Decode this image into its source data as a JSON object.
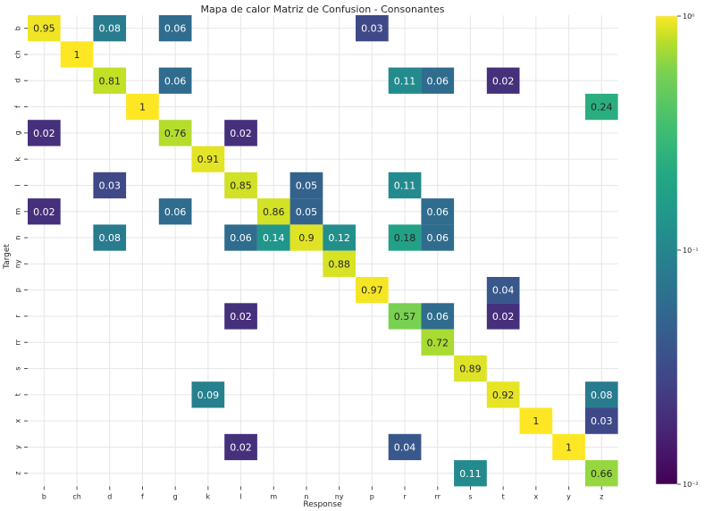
{
  "chart_data": {
    "type": "heatmap",
    "title": "Mapa de calor Matriz de Confusion - Consonantes",
    "xlabel": "Response",
    "ylabel": "Target",
    "x_categories": [
      "b",
      "ch",
      "d",
      "f",
      "g",
      "k",
      "l",
      "m",
      "n",
      "ny",
      "p",
      "r",
      "rr",
      "s",
      "t",
      "x",
      "y",
      "z"
    ],
    "y_categories": [
      "b",
      "ch",
      "d",
      "f",
      "g",
      "k",
      "l",
      "m",
      "n",
      "ny",
      "p",
      "r",
      "rr",
      "s",
      "t",
      "x",
      "y",
      "z"
    ],
    "cells": [
      {
        "row": "b",
        "col": "b",
        "value": 0.95,
        "label": "0.95"
      },
      {
        "row": "b",
        "col": "d",
        "value": 0.08,
        "label": "0.08"
      },
      {
        "row": "b",
        "col": "g",
        "value": 0.06,
        "label": "0.06"
      },
      {
        "row": "b",
        "col": "p",
        "value": 0.03,
        "label": "0.03"
      },
      {
        "row": "ch",
        "col": "ch",
        "value": 1,
        "label": "1"
      },
      {
        "row": "d",
        "col": "d",
        "value": 0.81,
        "label": "0.81"
      },
      {
        "row": "d",
        "col": "g",
        "value": 0.06,
        "label": "0.06"
      },
      {
        "row": "d",
        "col": "r",
        "value": 0.11,
        "label": "0.11"
      },
      {
        "row": "d",
        "col": "rr",
        "value": 0.06,
        "label": "0.06"
      },
      {
        "row": "d",
        "col": "t",
        "value": 0.02,
        "label": "0.02"
      },
      {
        "row": "f",
        "col": "f",
        "value": 1,
        "label": "1"
      },
      {
        "row": "f",
        "col": "z",
        "value": 0.24,
        "label": "0.24"
      },
      {
        "row": "g",
        "col": "b",
        "value": 0.02,
        "label": "0.02"
      },
      {
        "row": "g",
        "col": "g",
        "value": 0.76,
        "label": "0.76"
      },
      {
        "row": "g",
        "col": "l",
        "value": 0.02,
        "label": "0.02"
      },
      {
        "row": "k",
        "col": "k",
        "value": 0.91,
        "label": "0.91"
      },
      {
        "row": "l",
        "col": "d",
        "value": 0.03,
        "label": "0.03"
      },
      {
        "row": "l",
        "col": "l",
        "value": 0.85,
        "label": "0.85"
      },
      {
        "row": "l",
        "col": "n",
        "value": 0.05,
        "label": "0.05"
      },
      {
        "row": "l",
        "col": "r",
        "value": 0.11,
        "label": "0.11"
      },
      {
        "row": "m",
        "col": "b",
        "value": 0.02,
        "label": "0.02"
      },
      {
        "row": "m",
        "col": "g",
        "value": 0.06,
        "label": "0.06"
      },
      {
        "row": "m",
        "col": "m",
        "value": 0.86,
        "label": "0.86"
      },
      {
        "row": "m",
        "col": "n",
        "value": 0.05,
        "label": "0.05"
      },
      {
        "row": "m",
        "col": "rr",
        "value": 0.06,
        "label": "0.06"
      },
      {
        "row": "n",
        "col": "d",
        "value": 0.08,
        "label": "0.08"
      },
      {
        "row": "n",
        "col": "l",
        "value": 0.06,
        "label": "0.06"
      },
      {
        "row": "n",
        "col": "m",
        "value": 0.14,
        "label": "0.14"
      },
      {
        "row": "n",
        "col": "n",
        "value": 0.9,
        "label": "0.9"
      },
      {
        "row": "n",
        "col": "ny",
        "value": 0.12,
        "label": "0.12"
      },
      {
        "row": "n",
        "col": "r",
        "value": 0.18,
        "label": "0.18"
      },
      {
        "row": "n",
        "col": "rr",
        "value": 0.06,
        "label": "0.06"
      },
      {
        "row": "ny",
        "col": "ny",
        "value": 0.88,
        "label": "0.88"
      },
      {
        "row": "p",
        "col": "p",
        "value": 0.97,
        "label": "0.97"
      },
      {
        "row": "p",
        "col": "t",
        "value": 0.04,
        "label": "0.04"
      },
      {
        "row": "r",
        "col": "l",
        "value": 0.02,
        "label": "0.02"
      },
      {
        "row": "r",
        "col": "r",
        "value": 0.57,
        "label": "0.57"
      },
      {
        "row": "r",
        "col": "rr",
        "value": 0.06,
        "label": "0.06"
      },
      {
        "row": "r",
        "col": "t",
        "value": 0.02,
        "label": "0.02"
      },
      {
        "row": "rr",
        "col": "rr",
        "value": 0.72,
        "label": "0.72"
      },
      {
        "row": "s",
        "col": "s",
        "value": 0.89,
        "label": "0.89"
      },
      {
        "row": "t",
        "col": "k",
        "value": 0.09,
        "label": "0.09"
      },
      {
        "row": "t",
        "col": "t",
        "value": 0.92,
        "label": "0.92"
      },
      {
        "row": "t",
        "col": "z",
        "value": 0.08,
        "label": "0.08"
      },
      {
        "row": "x",
        "col": "x",
        "value": 1,
        "label": "1"
      },
      {
        "row": "x",
        "col": "z",
        "value": 0.03,
        "label": "0.03"
      },
      {
        "row": "y",
        "col": "l",
        "value": 0.02,
        "label": "0.02"
      },
      {
        "row": "y",
        "col": "r",
        "value": 0.04,
        "label": "0.04"
      },
      {
        "row": "y",
        "col": "y",
        "value": 1,
        "label": "1"
      },
      {
        "row": "z",
        "col": "s",
        "value": 0.11,
        "label": "0.11"
      },
      {
        "row": "z",
        "col": "z",
        "value": 0.66,
        "label": "0.66"
      }
    ],
    "colorbar": {
      "scale": "log",
      "range": [
        0.01,
        1
      ],
      "colormap": "viridis",
      "ticks": [
        {
          "value": 1,
          "label": "10⁰"
        },
        {
          "value": 0.1,
          "label": "10⁻¹"
        },
        {
          "value": 0.01,
          "label": "10⁻²"
        }
      ]
    },
    "grid": true
  },
  "colors": {
    "background": "#ffffff",
    "grid": "#e6e6e6",
    "text_dark": "#262626",
    "text_light": "#ffffff"
  }
}
